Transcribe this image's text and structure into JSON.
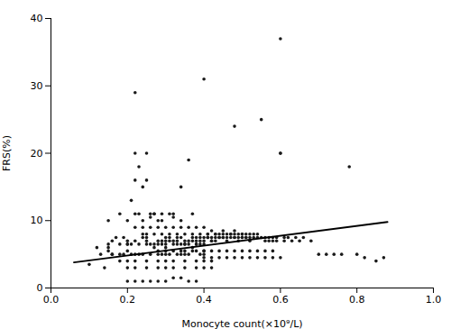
{
  "chart_data": {
    "type": "scatter",
    "xlabel": "Monocyte count(×10⁹/L)",
    "ylabel": "FRS(%)",
    "xlim": [
      0.0,
      1.0
    ],
    "ylim": [
      0,
      40
    ],
    "xticks": [
      {
        "value": 0.0,
        "label": "0.0"
      },
      0.2,
      0.4,
      0.6,
      0.8,
      {
        "value": 1.0,
        "label": "1.0"
      }
    ],
    "yticks": [
      0,
      10,
      20,
      30,
      40
    ],
    "grid": false,
    "series": [
      {
        "type": "scatter",
        "color": "#1a1a1a",
        "marker": "o",
        "x": [
          0.1,
          0.12,
          0.13,
          0.14,
          0.15,
          0.15,
          0.16,
          0.16,
          0.17,
          0.18,
          0.18,
          0.19,
          0.2,
          0.2,
          0.2,
          0.21,
          0.21,
          0.22,
          0.22,
          0.22,
          0.22,
          0.23,
          0.23,
          0.23,
          0.24,
          0.24,
          0.24,
          0.25,
          0.25,
          0.25,
          0.25,
          0.26,
          0.26,
          0.26,
          0.27,
          0.27,
          0.27,
          0.28,
          0.28,
          0.28,
          0.28,
          0.29,
          0.29,
          0.29,
          0.3,
          0.3,
          0.3,
          0.3,
          0.3,
          0.31,
          0.31,
          0.31,
          0.32,
          0.32,
          0.32,
          0.32,
          0.33,
          0.33,
          0.33,
          0.34,
          0.34,
          0.34,
          0.34,
          0.35,
          0.35,
          0.35,
          0.35,
          0.36,
          0.36,
          0.36,
          0.37,
          0.37,
          0.37,
          0.37,
          0.38,
          0.38,
          0.38,
          0.38,
          0.39,
          0.39,
          0.39,
          0.4,
          0.4,
          0.4,
          0.4,
          0.4,
          0.41,
          0.41,
          0.41,
          0.42,
          0.42,
          0.42,
          0.42,
          0.43,
          0.43,
          0.43,
          0.44,
          0.44,
          0.44,
          0.45,
          0.45,
          0.45,
          0.45,
          0.46,
          0.46,
          0.46,
          0.47,
          0.47,
          0.47,
          0.48,
          0.48,
          0.48,
          0.48,
          0.49,
          0.49,
          0.49,
          0.5,
          0.5,
          0.5,
          0.5,
          0.51,
          0.51,
          0.51,
          0.52,
          0.52,
          0.52,
          0.53,
          0.53,
          0.54,
          0.54,
          0.55,
          0.55,
          0.56,
          0.56,
          0.57,
          0.57,
          0.58,
          0.58,
          0.59,
          0.59,
          0.6,
          0.6,
          0.61,
          0.61,
          0.62,
          0.63,
          0.64,
          0.65,
          0.66,
          0.68,
          0.7,
          0.72,
          0.74,
          0.76,
          0.78,
          0.8,
          0.82,
          0.85,
          0.87,
          0.2,
          0.22,
          0.25,
          0.28,
          0.3,
          0.32,
          0.35,
          0.38,
          0.4,
          0.42,
          0.2,
          0.22,
          0.24,
          0.26,
          0.28,
          0.3,
          0.32,
          0.34,
          0.36,
          0.38,
          0.2,
          0.22,
          0.25,
          0.28,
          0.3,
          0.32,
          0.35,
          0.38,
          0.4,
          0.42,
          0.15,
          0.18,
          0.2,
          0.22,
          0.24,
          0.27,
          0.29,
          0.32,
          0.34,
          0.37,
          0.15,
          0.18,
          0.2,
          0.23,
          0.25,
          0.28,
          0.3,
          0.33,
          0.35,
          0.38,
          0.16,
          0.19,
          0.21,
          0.24,
          0.26,
          0.29,
          0.31,
          0.34,
          0.36,
          0.39,
          0.4,
          0.42,
          0.44,
          0.46,
          0.48,
          0.5,
          0.52,
          0.54,
          0.56,
          0.58,
          0.4,
          0.42,
          0.44,
          0.46,
          0.48,
          0.5,
          0.52,
          0.54,
          0.56,
          0.58,
          0.25,
          0.27,
          0.29,
          0.31,
          0.33,
          0.35,
          0.37,
          0.39,
          0.41,
          0.43,
          0.22,
          0.24,
          0.26,
          0.28,
          0.3,
          0.32,
          0.34,
          0.36,
          0.38,
          0.4
        ],
        "values": [
          3.5,
          6.0,
          5.0,
          3.0,
          6.0,
          5.5,
          5.0,
          7.0,
          7.5,
          5.0,
          4.0,
          7.5,
          5.5,
          6.5,
          7.0,
          13.0,
          6.5,
          20.0,
          16.0,
          5.0,
          7.0,
          5.0,
          18.0,
          11.0,
          7.5,
          8.0,
          15.0,
          20.0,
          16.0,
          7.0,
          7.5,
          10.5,
          11.0,
          6.5,
          6.5,
          11.0,
          6.0,
          7.0,
          5.5,
          5.0,
          10.0,
          6.5,
          7.0,
          11.0,
          7.5,
          7.0,
          6.0,
          5.5,
          5.0,
          7.5,
          7.0,
          11.0,
          7.0,
          6.5,
          5.5,
          10.5,
          5.0,
          7.5,
          7.0,
          7.5,
          6.5,
          5.5,
          15.0,
          7.0,
          6.5,
          5.5,
          5.0,
          7.0,
          6.5,
          19.0,
          7.5,
          7.0,
          5.5,
          6.0,
          7.5,
          7.0,
          6.5,
          5.5,
          7.0,
          7.5,
          6.5,
          7.5,
          7.0,
          6.5,
          5.5,
          5.0,
          7.5,
          8.0,
          7.5,
          7.0,
          8.5,
          7.5,
          7.0,
          8.0,
          7.5,
          7.0,
          8.0,
          7.5,
          7.5,
          7.5,
          8.0,
          7.5,
          8.5,
          7.0,
          8.0,
          7.5,
          8.0,
          7.5,
          8.0,
          7.5,
          8.0,
          7.5,
          8.5,
          8.0,
          7.5,
          7.0,
          8.0,
          7.5,
          8.0,
          7.5,
          8.0,
          7.5,
          7.5,
          8.0,
          7.5,
          7.0,
          8.0,
          7.5,
          8.0,
          7.5,
          7.5,
          25.0,
          7.5,
          7.0,
          7.5,
          7.0,
          7.5,
          7.0,
          7.5,
          7.0,
          20.0,
          4.5,
          7.5,
          7.0,
          7.5,
          7.0,
          7.5,
          7.0,
          7.5,
          7.0,
          5.0,
          5.0,
          5.0,
          5.0,
          18.0,
          5.0,
          4.5,
          4.0,
          4.5,
          4.0,
          4.0,
          4.0,
          4.0,
          4.0,
          4.0,
          4.0,
          4.0,
          4.0,
          4.0,
          1.0,
          1.0,
          1.0,
          1.0,
          1.0,
          1.0,
          1.5,
          1.5,
          1.0,
          1.0,
          3.0,
          3.0,
          3.0,
          3.0,
          3.0,
          3.0,
          3.0,
          3.0,
          3.0,
          3.0,
          10.0,
          11.0,
          10.0,
          11.0,
          10.0,
          11.0,
          10.0,
          11.0,
          10.0,
          11.0,
          6.5,
          6.5,
          6.5,
          6.5,
          6.5,
          6.5,
          6.5,
          6.5,
          6.5,
          6.5,
          5.0,
          5.0,
          5.0,
          5.0,
          5.0,
          5.0,
          5.0,
          5.0,
          5.0,
          5.0,
          5.5,
          5.5,
          5.5,
          5.5,
          5.5,
          5.5,
          5.5,
          5.5,
          5.5,
          5.5,
          4.5,
          4.5,
          4.5,
          4.5,
          4.5,
          4.5,
          4.5,
          4.5,
          4.5,
          4.5,
          8.0,
          8.0,
          8.0,
          8.0,
          8.0,
          8.0,
          8.0,
          8.0,
          8.0,
          8.0,
          9.0,
          9.0,
          9.0,
          9.0,
          9.0,
          9.0,
          9.0,
          9.0,
          9.0,
          9.0
        ]
      },
      {
        "type": "scatter",
        "color": "#1a1a1a",
        "marker": "o",
        "x": [
          0.22,
          0.4,
          0.6,
          0.48,
          0.6
        ],
        "values": [
          29.0,
          31.0,
          37.0,
          24.0,
          20.0
        ]
      },
      {
        "type": "line",
        "color": "#000000",
        "line_style": "solid",
        "x": [
          0.06,
          0.88
        ],
        "values": [
          3.8,
          9.8
        ]
      }
    ]
  }
}
